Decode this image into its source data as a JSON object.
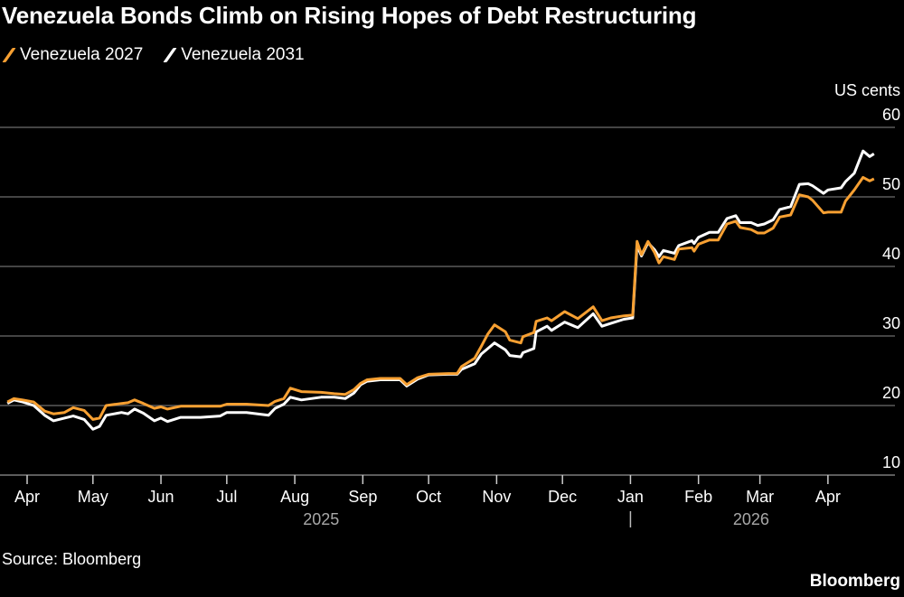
{
  "title": "Venezuela Bonds Climb on Rising Hopes of Debt Restructuring",
  "source": "Source: Bloomberg",
  "brand": "Bloomberg",
  "colors": {
    "Venezuela 2027": "#f7a032",
    "Venezuela 2031": "#ffffff",
    "grid": "#5a5a5a",
    "year_label": "#a8a8a8"
  },
  "chart_data": {
    "type": "line",
    "title": "Venezuela Bonds Climb on Rising Hopes of Debt Restructuring",
    "ylabel": "US cents",
    "xlabel": "",
    "x_unit": "days since 2025-04-01",
    "ylim": [
      10,
      60
    ],
    "yticks": [
      10,
      20,
      30,
      40,
      50,
      60
    ],
    "xlim": [
      -9,
      386
    ],
    "xticks": [
      {
        "label": "Apr",
        "day": 0
      },
      {
        "label": "May",
        "day": 30
      },
      {
        "label": "Jun",
        "day": 61
      },
      {
        "label": "Jul",
        "day": 91
      },
      {
        "label": "Aug",
        "day": 122
      },
      {
        "label": "Sep",
        "day": 153
      },
      {
        "label": "Oct",
        "day": 183
      },
      {
        "label": "Nov",
        "day": 214
      },
      {
        "label": "Dec",
        "day": 244
      },
      {
        "label": "Jan",
        "day": 275
      },
      {
        "label": "Feb",
        "day": 306
      },
      {
        "label": "Mar",
        "day": 334
      },
      {
        "label": "Apr",
        "day": 365
      }
    ],
    "year_labels": [
      {
        "label": "2025",
        "day": 134
      },
      {
        "label": "2026",
        "day": 330
      }
    ],
    "year_divider_day": 275,
    "grid": true,
    "legend_position": "top-left",
    "series": [
      {
        "name": "Venezuela 2027",
        "points": [
          [
            -9,
            20.5
          ],
          [
            -6,
            21.0
          ],
          [
            -2,
            20.8
          ],
          [
            3,
            20.5
          ],
          [
            8,
            19.2
          ],
          [
            12,
            18.8
          ],
          [
            17,
            19.0
          ],
          [
            21,
            19.7
          ],
          [
            26,
            19.3
          ],
          [
            30,
            18.0
          ],
          [
            33,
            18.2
          ],
          [
            36,
            20.0
          ],
          [
            43,
            20.3
          ],
          [
            46,
            20.4
          ],
          [
            49,
            20.8
          ],
          [
            53,
            20.3
          ],
          [
            58,
            19.6
          ],
          [
            61,
            19.8
          ],
          [
            64,
            19.5
          ],
          [
            70,
            19.9
          ],
          [
            79,
            19.9
          ],
          [
            88,
            19.9
          ],
          [
            91,
            20.2
          ],
          [
            100,
            20.2
          ],
          [
            110,
            20.0
          ],
          [
            113,
            20.6
          ],
          [
            117,
            21.0
          ],
          [
            120,
            22.5
          ],
          [
            125,
            22.0
          ],
          [
            134,
            21.9
          ],
          [
            140,
            21.7
          ],
          [
            145,
            21.6
          ],
          [
            149,
            22.3
          ],
          [
            152,
            23.2
          ],
          [
            155,
            23.7
          ],
          [
            161,
            23.9
          ],
          [
            170,
            23.9
          ],
          [
            173,
            23.0
          ],
          [
            178,
            24.0
          ],
          [
            183,
            24.5
          ],
          [
            192,
            24.6
          ],
          [
            196,
            24.6
          ],
          [
            198,
            25.6
          ],
          [
            204,
            26.8
          ],
          [
            207,
            28.5
          ],
          [
            210,
            30.3
          ],
          [
            213,
            31.6
          ],
          [
            218,
            30.6
          ],
          [
            220,
            29.4
          ],
          [
            225,
            29.0
          ],
          [
            226,
            29.9
          ],
          [
            231,
            30.5
          ],
          [
            232,
            32.1
          ],
          [
            237,
            32.6
          ],
          [
            239,
            32.2
          ],
          [
            245,
            33.5
          ],
          [
            251,
            32.5
          ],
          [
            258,
            34.2
          ],
          [
            262,
            32.2
          ],
          [
            266,
            32.6
          ],
          [
            272,
            32.9
          ],
          [
            276,
            33.0
          ],
          [
            278,
            43.6
          ],
          [
            280,
            41.7
          ],
          [
            283,
            43.6
          ],
          [
            286,
            42.0
          ],
          [
            288,
            40.5
          ],
          [
            290,
            41.4
          ],
          [
            295,
            41.0
          ],
          [
            297,
            42.5
          ],
          [
            303,
            42.7
          ],
          [
            304,
            42.2
          ],
          [
            306,
            43.2
          ],
          [
            311,
            43.8
          ],
          [
            315,
            43.8
          ],
          [
            319,
            46.1
          ],
          [
            323,
            46.5
          ],
          [
            325,
            45.6
          ],
          [
            330,
            45.3
          ],
          [
            333,
            44.8
          ],
          [
            336,
            44.8
          ],
          [
            340,
            45.5
          ],
          [
            343,
            47.1
          ],
          [
            348,
            47.4
          ],
          [
            352,
            50.3
          ],
          [
            356,
            50.0
          ],
          [
            358,
            49.5
          ],
          [
            363,
            47.7
          ],
          [
            365,
            47.8
          ],
          [
            371,
            47.8
          ],
          [
            373,
            49.4
          ],
          [
            377,
            51.0
          ],
          [
            381,
            52.8
          ],
          [
            384,
            52.3
          ],
          [
            386,
            52.6
          ]
        ]
      },
      {
        "name": "Venezuela 2031",
        "points": [
          [
            -9,
            20.3
          ],
          [
            -6,
            20.8
          ],
          [
            -2,
            20.5
          ],
          [
            3,
            20.0
          ],
          [
            8,
            18.6
          ],
          [
            12,
            17.8
          ],
          [
            17,
            18.2
          ],
          [
            21,
            18.5
          ],
          [
            26,
            18.0
          ],
          [
            30,
            16.6
          ],
          [
            33,
            17.0
          ],
          [
            36,
            18.6
          ],
          [
            43,
            19.0
          ],
          [
            46,
            18.8
          ],
          [
            49,
            19.5
          ],
          [
            53,
            18.9
          ],
          [
            58,
            17.8
          ],
          [
            61,
            18.2
          ],
          [
            64,
            17.7
          ],
          [
            70,
            18.3
          ],
          [
            79,
            18.3
          ],
          [
            88,
            18.5
          ],
          [
            91,
            19.0
          ],
          [
            100,
            19.0
          ],
          [
            110,
            18.6
          ],
          [
            113,
            19.6
          ],
          [
            117,
            20.2
          ],
          [
            120,
            21.2
          ],
          [
            125,
            20.8
          ],
          [
            134,
            21.2
          ],
          [
            140,
            21.2
          ],
          [
            145,
            21.0
          ],
          [
            149,
            21.8
          ],
          [
            152,
            23.0
          ],
          [
            155,
            23.5
          ],
          [
            161,
            23.7
          ],
          [
            170,
            23.7
          ],
          [
            173,
            22.8
          ],
          [
            178,
            23.8
          ],
          [
            183,
            24.4
          ],
          [
            192,
            24.5
          ],
          [
            196,
            24.5
          ],
          [
            198,
            25.2
          ],
          [
            204,
            26.0
          ],
          [
            207,
            27.4
          ],
          [
            210,
            28.2
          ],
          [
            213,
            29.0
          ],
          [
            218,
            28.0
          ],
          [
            220,
            27.2
          ],
          [
            225,
            27.0
          ],
          [
            226,
            27.6
          ],
          [
            231,
            28.2
          ],
          [
            232,
            30.6
          ],
          [
            237,
            31.4
          ],
          [
            239,
            30.8
          ],
          [
            245,
            32.0
          ],
          [
            251,
            31.2
          ],
          [
            258,
            33.2
          ],
          [
            262,
            31.4
          ],
          [
            266,
            31.8
          ],
          [
            272,
            32.4
          ],
          [
            276,
            32.6
          ],
          [
            278,
            43.0
          ],
          [
            280,
            41.5
          ],
          [
            283,
            43.4
          ],
          [
            286,
            42.4
          ],
          [
            288,
            41.4
          ],
          [
            290,
            42.3
          ],
          [
            295,
            41.9
          ],
          [
            297,
            43.0
          ],
          [
            303,
            43.7
          ],
          [
            304,
            43.3
          ],
          [
            306,
            44.2
          ],
          [
            311,
            44.9
          ],
          [
            315,
            44.9
          ],
          [
            319,
            46.9
          ],
          [
            323,
            47.3
          ],
          [
            325,
            46.3
          ],
          [
            330,
            46.3
          ],
          [
            333,
            45.9
          ],
          [
            336,
            46.1
          ],
          [
            340,
            46.7
          ],
          [
            343,
            48.2
          ],
          [
            348,
            48.6
          ],
          [
            352,
            51.8
          ],
          [
            356,
            51.9
          ],
          [
            358,
            51.6
          ],
          [
            363,
            50.5
          ],
          [
            365,
            51.0
          ],
          [
            371,
            51.3
          ],
          [
            373,
            52.2
          ],
          [
            377,
            53.4
          ],
          [
            381,
            56.6
          ],
          [
            384,
            55.8
          ],
          [
            386,
            56.2
          ]
        ]
      }
    ]
  }
}
